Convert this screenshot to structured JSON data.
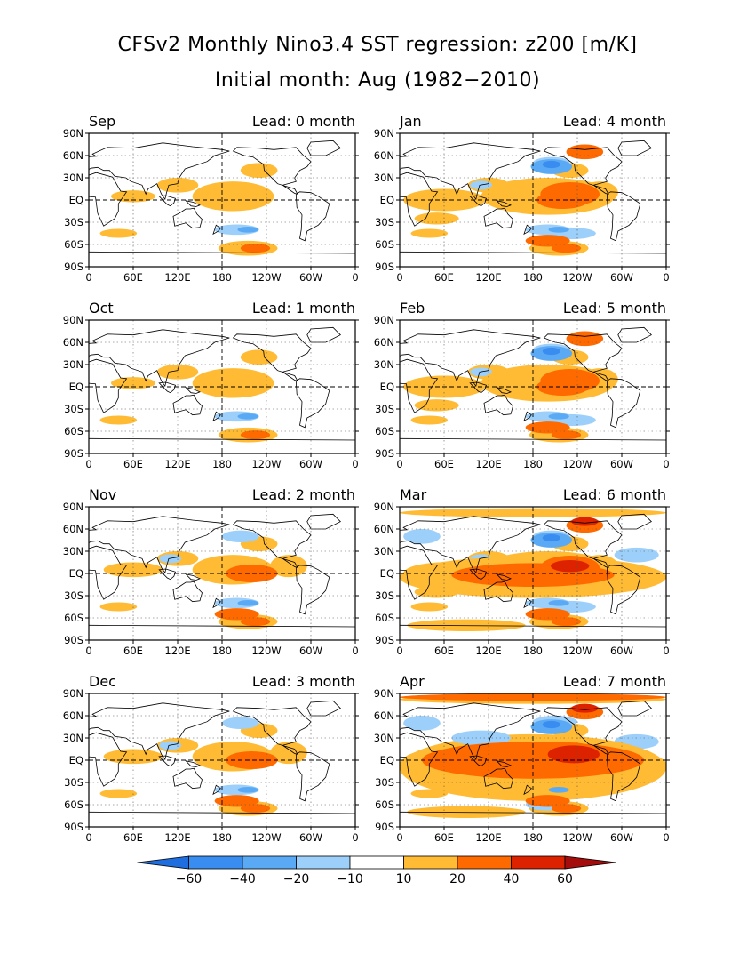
{
  "header": {
    "title": "CFSv2 Monthly Nino3.4 SST regression: z200 [m/K]",
    "subtitle": "Initial month: Aug (1982−2010)"
  },
  "axes": {
    "lat_ticks": [
      "90N",
      "60N",
      "30N",
      "EQ",
      "30S",
      "60S",
      "90S"
    ],
    "lon_ticks": [
      "0",
      "60E",
      "120E",
      "180",
      "120W",
      "60W",
      "0"
    ]
  },
  "panels": [
    {
      "month": "Sep",
      "lead": "Lead: 0 month",
      "intensity": 1
    },
    {
      "month": "Jan",
      "lead": "Lead: 4 month",
      "intensity": 3
    },
    {
      "month": "Oct",
      "lead": "Lead: 1 month",
      "intensity": 1
    },
    {
      "month": "Feb",
      "lead": "Lead: 5 month",
      "intensity": 3
    },
    {
      "month": "Nov",
      "lead": "Lead: 2 month",
      "intensity": 2
    },
    {
      "month": "Mar",
      "lead": "Lead: 6 month",
      "intensity": 4
    },
    {
      "month": "Dec",
      "lead": "Lead: 3 month",
      "intensity": 2
    },
    {
      "month": "Apr",
      "lead": "Lead: 7 month",
      "intensity": 5
    }
  ],
  "colorbar": {
    "labels": [
      "−60",
      "−40",
      "−20",
      "−10",
      "10",
      "20",
      "40",
      "60"
    ],
    "colors": [
      "#1e6ee0",
      "#3a8df0",
      "#5aa9f5",
      "#9ccffa",
      "#ffffff",
      "#ffbb33",
      "#ff6a00",
      "#dd2200",
      "#a50d0d"
    ]
  }
}
